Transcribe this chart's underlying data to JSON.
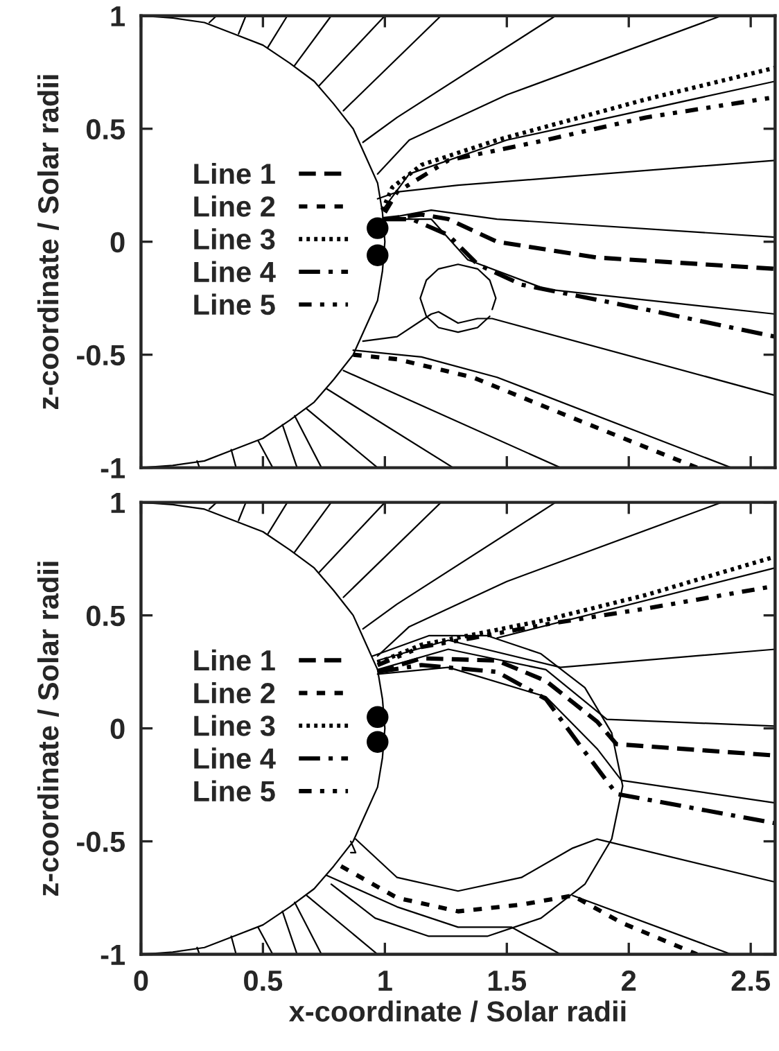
{
  "chart_data": [
    {
      "type": "line",
      "ylabel": "z-coordinate / Solar radii",
      "xlim": [
        0,
        2.6
      ],
      "ylim": [
        -1,
        1
      ],
      "xticks": [
        0,
        0.5,
        1,
        1.5,
        2,
        2.5
      ],
      "yticks": [
        -1,
        -0.5,
        0,
        0.5,
        1
      ],
      "tick_labels": "y",
      "grid": false,
      "legend": "left",
      "series": [
        {
          "color": "#000000",
          "x": [
            0,
            0.13,
            0.26,
            0.38,
            0.5,
            0.61,
            0.71,
            0.79,
            0.87,
            0.92,
            0.97,
            0.99,
            1,
            0.99,
            0.97,
            0.92,
            0.87,
            0.79,
            0.71,
            0.61,
            0.5,
            0.38,
            0.26,
            0.13,
            0
          ],
          "values": [
            1,
            0.99,
            0.97,
            0.92,
            0.87,
            0.79,
            0.71,
            0.61,
            0.5,
            0.38,
            0.26,
            0.13,
            0,
            -0.13,
            -0.26,
            -0.38,
            -0.5,
            -0.61,
            -0.71,
            -0.79,
            -0.87,
            -0.92,
            -0.97,
            -0.99,
            -1
          ]
        },
        {
          "color": "#000000",
          "x": [
            0.28,
            0.31
          ],
          "values": [
            0.97,
            1.0
          ]
        },
        {
          "color": "#000000",
          "x": [
            0.4,
            0.43
          ],
          "values": [
            0.92,
            1.0
          ]
        },
        {
          "color": "#000000",
          "x": [
            0.52,
            0.6
          ],
          "values": [
            0.86,
            1.0
          ]
        },
        {
          "color": "#000000",
          "x": [
            0.63,
            0.78
          ],
          "values": [
            0.78,
            1.0
          ]
        },
        {
          "color": "#000000",
          "x": [
            0.73,
            1.0
          ],
          "values": [
            0.69,
            1.0
          ]
        },
        {
          "color": "#000000",
          "x": [
            0.83,
            1.23
          ],
          "values": [
            0.58,
            1.0
          ]
        },
        {
          "color": "#000000",
          "x": [
            0.91,
            1.05,
            1.7
          ],
          "values": [
            0.44,
            0.55,
            1.0
          ]
        },
        {
          "color": "#000000",
          "x": [
            0.97,
            1.1,
            1.5,
            2.38
          ],
          "values": [
            0.3,
            0.45,
            0.65,
            1.0
          ]
        },
        {
          "color": "#000000",
          "x": [
            0.99,
            1.1,
            1.5,
            2.6
          ],
          "values": [
            0.14,
            0.3,
            0.45,
            0.71
          ]
        },
        {
          "color": "#000000",
          "x": [
            0.97,
            1.05,
            1.3,
            2.6
          ],
          "values": [
            0.19,
            0.22,
            0.25,
            0.36
          ]
        },
        {
          "color": "#000000",
          "x": [
            0.99,
            1.19,
            1.46,
            2.6
          ],
          "values": [
            0.1,
            0.14,
            0.1,
            0.02
          ]
        },
        {
          "color": "#000000",
          "x": [
            1.0,
            1.19,
            1.34,
            1.66,
            2.6
          ],
          "values": [
            0.1,
            0.1,
            -0.08,
            -0.21,
            -0.32
          ]
        },
        {
          "color": "#000000",
          "x": [
            1.44,
            1.455,
            1.43,
            1.38,
            1.3,
            1.22,
            1.17,
            1.145,
            1.17,
            1.22,
            1.3,
            1.38,
            1.43
          ],
          "values": [
            -0.3,
            -0.25,
            -0.17,
            -0.12,
            -0.1,
            -0.12,
            -0.17,
            -0.25,
            -0.33,
            -0.38,
            -0.4,
            -0.38,
            -0.33
          ]
        },
        {
          "color": "#000000",
          "x": [
            0.91,
            1.05,
            1.19,
            1.22,
            1.3,
            1.38,
            1.44,
            2.6
          ],
          "values": [
            -0.44,
            -0.42,
            -0.32,
            -0.31,
            -0.36,
            -0.34,
            -0.34,
            -0.68
          ]
        },
        {
          "color": "#000000",
          "x": [
            0.87,
            1.15,
            1.46,
            2.42
          ],
          "values": [
            -0.48,
            -0.51,
            -0.6,
            -1.0
          ]
        },
        {
          "color": "#000000",
          "x": [
            0.83,
            1.72
          ],
          "values": [
            -0.57,
            -1.0
          ]
        },
        {
          "color": "#000000",
          "x": [
            0.76,
            1.28
          ],
          "values": [
            -0.65,
            -1.0
          ]
        },
        {
          "color": "#000000",
          "x": [
            0.68,
            0.97
          ],
          "values": [
            -0.74,
            -1.0
          ]
        },
        {
          "color": "#000000",
          "x": [
            0.63,
            0.74
          ],
          "values": [
            -0.77,
            -1.0
          ]
        },
        {
          "color": "#000000",
          "x": [
            0.58,
            0.64
          ],
          "values": [
            -0.81,
            -1.0
          ]
        },
        {
          "color": "#000000",
          "x": [
            0.48,
            0.54
          ],
          "values": [
            -0.88,
            -1.0
          ]
        },
        {
          "color": "#000000",
          "x": [
            0.37,
            0.39
          ],
          "values": [
            -0.92,
            -1.0
          ]
        },
        {
          "color": "#000000",
          "x": [
            0.23,
            0.24
          ],
          "values": [
            -0.97,
            -1.0
          ]
        },
        {
          "name": "Line 1",
          "color": "#000000",
          "line_style": "dashed",
          "x": [
            0.99,
            1.15,
            1.26,
            1.46,
            1.87,
            2.6
          ],
          "values": [
            0.1,
            0.12,
            0.1,
            0.0,
            -0.07,
            -0.12
          ]
        },
        {
          "name": "Line 2",
          "color": "#000000",
          "line_style": "short-dashed",
          "x": [
            0.87,
            1.05,
            1.36,
            1.77,
            2.28
          ],
          "values": [
            -0.5,
            -0.52,
            -0.6,
            -0.78,
            -1.0
          ]
        },
        {
          "name": "Line 3",
          "color": "#000000",
          "line_style": "dotted",
          "x": [
            0.99,
            1.03,
            1.15,
            1.46,
            2.07,
            2.6
          ],
          "values": [
            0.14,
            0.24,
            0.34,
            0.45,
            0.63,
            0.77
          ]
        },
        {
          "name": "Line 4",
          "color": "#000000",
          "line_style": "dash-dot",
          "x": [
            1.0,
            1.11,
            1.26,
            1.38,
            1.56,
            2.07,
            2.6
          ],
          "values": [
            0.1,
            0.1,
            0.03,
            -0.1,
            -0.19,
            -0.3,
            -0.42
          ]
        },
        {
          "name": "Line 5",
          "color": "#000000",
          "line_style": "dash-dot-dot",
          "x": [
            1.0,
            1.05,
            1.26,
            1.66,
            2.07,
            2.6
          ],
          "values": [
            0.13,
            0.22,
            0.36,
            0.45,
            0.55,
            0.64
          ]
        },
        {
          "type": "scatter",
          "color": "#000000",
          "marker": "circle",
          "x": [
            0.97,
            0.97
          ],
          "values": [
            0.06,
            -0.06
          ]
        }
      ]
    },
    {
      "type": "line",
      "xlabel": "x-coordinate / Solar radii",
      "ylabel": "z-coordinate / Solar radii",
      "xlim": [
        0,
        2.6
      ],
      "ylim": [
        -1,
        1
      ],
      "xticks": [
        0,
        0.5,
        1,
        1.5,
        2,
        2.5
      ],
      "yticks": [
        -1,
        -0.5,
        0,
        0.5,
        1
      ],
      "grid": false,
      "legend": "left",
      "series": [
        {
          "color": "#000000",
          "x": [
            0,
            0.13,
            0.26,
            0.38,
            0.5,
            0.61,
            0.71,
            0.79,
            0.87,
            0.92,
            0.97,
            0.99,
            1,
            0.99,
            0.97,
            0.92,
            0.87,
            0.79,
            0.71,
            0.61,
            0.5,
            0.38,
            0.26,
            0.13,
            0
          ],
          "values": [
            1,
            0.99,
            0.97,
            0.92,
            0.87,
            0.79,
            0.71,
            0.61,
            0.5,
            0.38,
            0.26,
            0.13,
            0,
            -0.13,
            -0.26,
            -0.38,
            -0.5,
            -0.61,
            -0.71,
            -0.79,
            -0.87,
            -0.92,
            -0.97,
            -0.99,
            -1
          ]
        },
        {
          "color": "#000000",
          "x": [
            0.28,
            0.31
          ],
          "values": [
            0.97,
            1.0
          ]
        },
        {
          "color": "#000000",
          "x": [
            0.4,
            0.43
          ],
          "values": [
            0.92,
            1.0
          ]
        },
        {
          "color": "#000000",
          "x": [
            0.52,
            0.6
          ],
          "values": [
            0.86,
            1.0
          ]
        },
        {
          "color": "#000000",
          "x": [
            0.63,
            0.78
          ],
          "values": [
            0.78,
            1.0
          ]
        },
        {
          "color": "#000000",
          "x": [
            0.73,
            1.0
          ],
          "values": [
            0.69,
            1.0
          ]
        },
        {
          "color": "#000000",
          "x": [
            0.83,
            1.23
          ],
          "values": [
            0.58,
            1.0
          ]
        },
        {
          "color": "#000000",
          "x": [
            0.91,
            1.05,
            1.7
          ],
          "values": [
            0.44,
            0.55,
            1.0
          ]
        },
        {
          "color": "#000000",
          "x": [
            0.97,
            1.1,
            1.5,
            2.38
          ],
          "values": [
            0.32,
            0.45,
            0.65,
            1.0
          ]
        },
        {
          "color": "#000000",
          "x": [
            0.95,
            1.18,
            1.42,
            1.64,
            1.82,
            1.93,
            1.975,
            1.93,
            1.82,
            1.64,
            1.42,
            1.18,
            0.96,
            0.78
          ],
          "values": [
            0.32,
            0.41,
            0.41,
            0.33,
            0.18,
            -0.02,
            -0.255,
            -0.49,
            -0.69,
            -0.84,
            -0.92,
            -0.92,
            -0.84,
            -0.69
          ]
        },
        {
          "color": "#000000",
          "x": [
            1.46,
            2.6
          ],
          "values": [
            0.4,
            0.71
          ]
        },
        {
          "color": "#000000",
          "x": [
            0.97,
            1.26,
            1.72,
            2.6
          ],
          "values": [
            0.3,
            0.39,
            0.27,
            0.35
          ]
        },
        {
          "color": "#000000",
          "x": [
            0.97,
            1.26,
            1.66,
            1.91,
            2.6
          ],
          "values": [
            0.26,
            0.35,
            0.26,
            0.04,
            0.01
          ]
        },
        {
          "color": "#000000",
          "x": [
            0.97,
            1.26,
            1.66,
            1.87,
            1.97,
            2.6
          ],
          "values": [
            0.24,
            0.27,
            0.14,
            -0.09,
            -0.23,
            -0.33
          ]
        },
        {
          "color": "#000000",
          "x": [
            0.88,
            1.05,
            1.3,
            1.56,
            1.77,
            1.87,
            2.6
          ],
          "values": [
            -0.49,
            -0.66,
            -0.72,
            -0.66,
            -0.53,
            -0.49,
            -0.68
          ]
        },
        {
          "color": "#000000",
          "x": [
            0.86,
            0.88,
            0.86
          ],
          "values": [
            -0.5,
            -0.55,
            -0.55
          ]
        },
        {
          "color": "#000000",
          "x": [
            0.76,
            1.05,
            1.3,
            1.52,
            1.72
          ],
          "values": [
            -0.65,
            -0.79,
            -0.88,
            -0.88,
            -1.0
          ]
        },
        {
          "color": "#000000",
          "x": [
            1.77,
            2.42
          ],
          "values": [
            -0.74,
            -1.0
          ]
        },
        {
          "color": "#000000",
          "x": [
            0.68,
            0.97
          ],
          "values": [
            -0.74,
            -1.0
          ]
        },
        {
          "color": "#000000",
          "x": [
            0.63,
            0.74
          ],
          "values": [
            -0.77,
            -1.0
          ]
        },
        {
          "color": "#000000",
          "x": [
            0.58,
            0.64
          ],
          "values": [
            -0.81,
            -1.0
          ]
        },
        {
          "color": "#000000",
          "x": [
            0.48,
            0.54
          ],
          "values": [
            -0.88,
            -1.0
          ]
        },
        {
          "color": "#000000",
          "x": [
            0.37,
            0.39
          ],
          "values": [
            -0.92,
            -1.0
          ]
        },
        {
          "color": "#000000",
          "x": [
            0.23,
            0.24
          ],
          "values": [
            -0.97,
            -1.0
          ]
        },
        {
          "name": "Line 1",
          "color": "#000000",
          "line_style": "dashed",
          "x": [
            0.97,
            1.15,
            1.46,
            1.66,
            1.87,
            1.95,
            2.6
          ],
          "values": [
            0.25,
            0.31,
            0.3,
            0.21,
            0.03,
            -0.07,
            -0.12
          ]
        },
        {
          "name": "Line 2",
          "color": "#000000",
          "line_style": "short-dashed",
          "x": [
            0.82,
            1.05,
            1.3,
            1.56,
            1.77,
            1.97,
            2.28
          ],
          "values": [
            -0.61,
            -0.75,
            -0.81,
            -0.78,
            -0.74,
            -0.86,
            -1.0
          ]
        },
        {
          "name": "Line 3",
          "color": "#000000",
          "line_style": "dotted",
          "x": [
            0.97,
            1.15,
            1.34,
            1.66,
            2.07,
            2.6
          ],
          "values": [
            0.29,
            0.37,
            0.41,
            0.48,
            0.59,
            0.76
          ]
        },
        {
          "name": "Line 4",
          "color": "#000000",
          "line_style": "dash-dot",
          "x": [
            0.97,
            1.15,
            1.46,
            1.66,
            1.81,
            1.95,
            2.6
          ],
          "values": [
            0.25,
            0.28,
            0.25,
            0.13,
            -0.09,
            -0.29,
            -0.42
          ]
        },
        {
          "name": "Line 5",
          "color": "#000000",
          "line_style": "dash-dot-dot",
          "x": [
            0.97,
            1.15,
            1.36,
            1.66,
            2.07,
            2.6
          ],
          "values": [
            0.28,
            0.36,
            0.4,
            0.46,
            0.53,
            0.63
          ]
        },
        {
          "type": "scatter",
          "color": "#000000",
          "marker": "circle",
          "x": [
            0.97,
            0.97
          ],
          "values": [
            0.05,
            -0.06
          ]
        }
      ]
    }
  ]
}
